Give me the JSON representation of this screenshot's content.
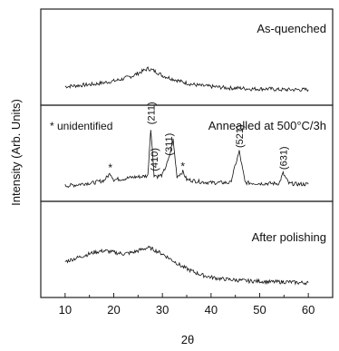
{
  "chart_data": {
    "type": "line",
    "ylabel": "Intensity (Arb. Units)",
    "xlabel": "2θ",
    "xlim": [
      5,
      65
    ],
    "xticks": [
      10,
      20,
      30,
      40,
      50,
      60
    ],
    "xtick_labels": [
      "10",
      "20",
      "30",
      "40",
      "50",
      "60"
    ],
    "grid": false,
    "note": "* unidentified",
    "panels": [
      {
        "label": "As-quenched",
        "series": [
          {
            "x": [
              10,
              12,
              14,
              16,
              18,
              20,
              22,
              24,
              25,
              26,
              27,
              28,
              29,
              30,
              32,
              34,
              36,
              38,
              40,
              42,
              44,
              46,
              48,
              50,
              52,
              54,
              56,
              58,
              60
            ],
            "y": [
              0.1,
              0.11,
              0.12,
              0.13,
              0.15,
              0.17,
              0.2,
              0.24,
              0.27,
              0.3,
              0.33,
              0.31,
              0.28,
              0.24,
              0.2,
              0.16,
              0.13,
              0.11,
              0.1,
              0.09,
              0.08,
              0.08,
              0.07,
              0.07,
              0.07,
              0.06,
              0.06,
              0.06,
              0.06
            ]
          }
        ]
      },
      {
        "label": "Annealled at 500°C/3h",
        "series": [
          {
            "x": [
              10,
              12,
              14,
              16,
              18,
              19.3,
              20,
              22,
              24,
              26,
              27,
              27.6,
              28.3,
              29,
              30,
              31.3,
              32.2,
              33,
              34.2,
              35,
              38,
              40,
              42,
              44,
              45.8,
              47,
              50,
              52,
              54,
              54.8,
              56,
              58,
              60
            ],
            "y": [
              0.06,
              0.07,
              0.09,
              0.1,
              0.13,
              0.22,
              0.14,
              0.15,
              0.17,
              0.18,
              0.19,
              0.8,
              0.2,
              0.18,
              0.2,
              0.4,
              0.65,
              0.18,
              0.24,
              0.14,
              0.11,
              0.1,
              0.1,
              0.1,
              0.5,
              0.1,
              0.09,
              0.09,
              0.09,
              0.22,
              0.09,
              0.08,
              0.08
            ]
          }
        ],
        "peak_labels": [
          {
            "x": 27.6,
            "y": 0.8,
            "text": "(211)"
          },
          {
            "x": 28.3,
            "y": 0.2,
            "text": "(410)"
          },
          {
            "x": 31.3,
            "y": 0.4,
            "text": "(311)"
          },
          {
            "x": 45.8,
            "y": 0.5,
            "text": "(521)"
          },
          {
            "x": 54.8,
            "y": 0.22,
            "text": "(631)"
          }
        ],
        "asterisks": [
          {
            "x": 19.3,
            "y": 0.22,
            "text": "*"
          },
          {
            "x": 34.2,
            "y": 0.24,
            "text": "*"
          }
        ]
      },
      {
        "label": "After polishing",
        "series": [
          {
            "x": [
              10,
              12,
              14,
              16,
              18,
              20,
              22,
              24,
              26,
              27,
              28,
              30,
              32,
              34,
              36,
              38,
              40,
              42,
              44,
              46,
              48,
              50,
              52,
              54,
              56,
              58,
              60
            ],
            "y": [
              0.32,
              0.36,
              0.4,
              0.44,
              0.46,
              0.44,
              0.42,
              0.44,
              0.48,
              0.5,
              0.48,
              0.42,
              0.34,
              0.26,
              0.2,
              0.15,
              0.12,
              0.1,
              0.09,
              0.08,
              0.07,
              0.07,
              0.06,
              0.06,
              0.06,
              0.05,
              0.05
            ]
          }
        ]
      }
    ],
    "colors": {
      "line": "#111111",
      "axis": "#222222",
      "background": "#ffffff"
    }
  }
}
